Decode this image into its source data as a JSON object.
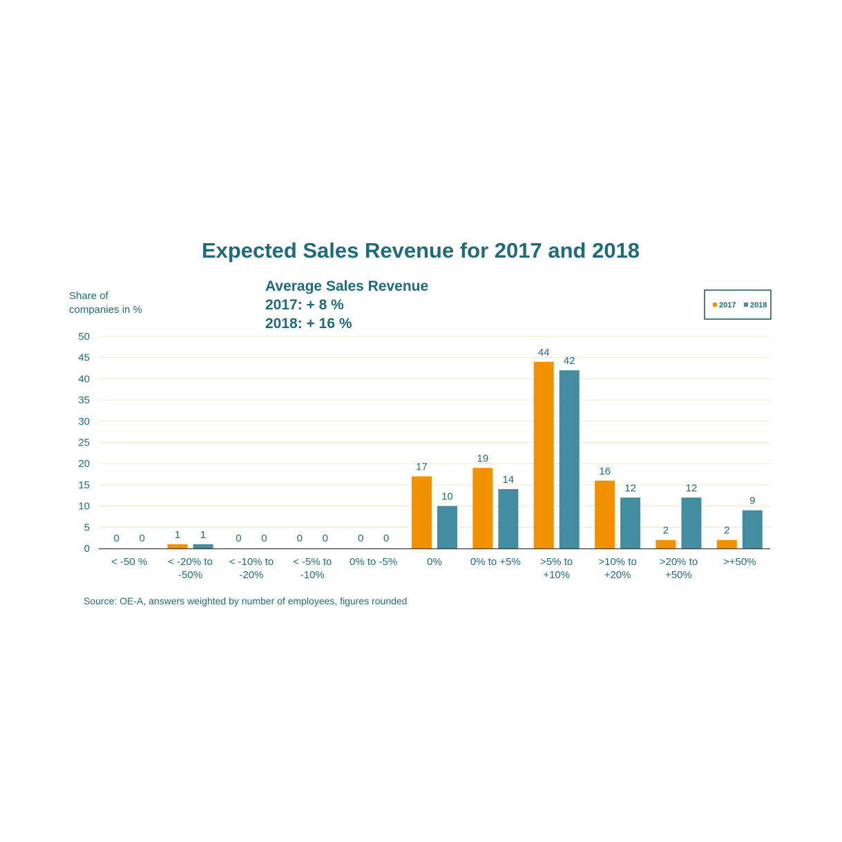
{
  "chart_data": {
    "type": "bar",
    "title": "Expected Sales Revenue for 2017 and 2018",
    "ylabel": [
      "Share of",
      "companies in %"
    ],
    "annotation": [
      "Average Sales Revenue",
      "2017: + 8 %",
      "2018: + 16 %"
    ],
    "source": "Source: OE-A, answers weighted by number of employees, figures rounded",
    "categories": [
      [
        "< -50 %"
      ],
      [
        "< -20% to",
        "-50%"
      ],
      [
        "< -10% to",
        "-20%"
      ],
      [
        "< -5% to",
        "-10%"
      ],
      [
        "0% to -5%"
      ],
      [
        "0%"
      ],
      [
        "0% to +5%"
      ],
      [
        ">5% to",
        "+10%"
      ],
      [
        ">10% to",
        "+20%"
      ],
      [
        ">20% to",
        "+50%"
      ],
      [
        ">+50%"
      ]
    ],
    "series": [
      {
        "name": "2017",
        "color": "#f39200",
        "values": [
          0,
          1,
          0,
          0,
          0,
          17,
          19,
          44,
          16,
          2,
          2
        ]
      },
      {
        "name": "2018",
        "color": "#438da0",
        "values": [
          0,
          1,
          0,
          0,
          0,
          10,
          14,
          42,
          12,
          12,
          9
        ]
      }
    ],
    "ylim": [
      0,
      50
    ],
    "yticks": [
      0,
      5,
      10,
      15,
      20,
      25,
      30,
      35,
      40,
      45,
      50
    ],
    "grid": true,
    "legend_position": "top-right"
  }
}
